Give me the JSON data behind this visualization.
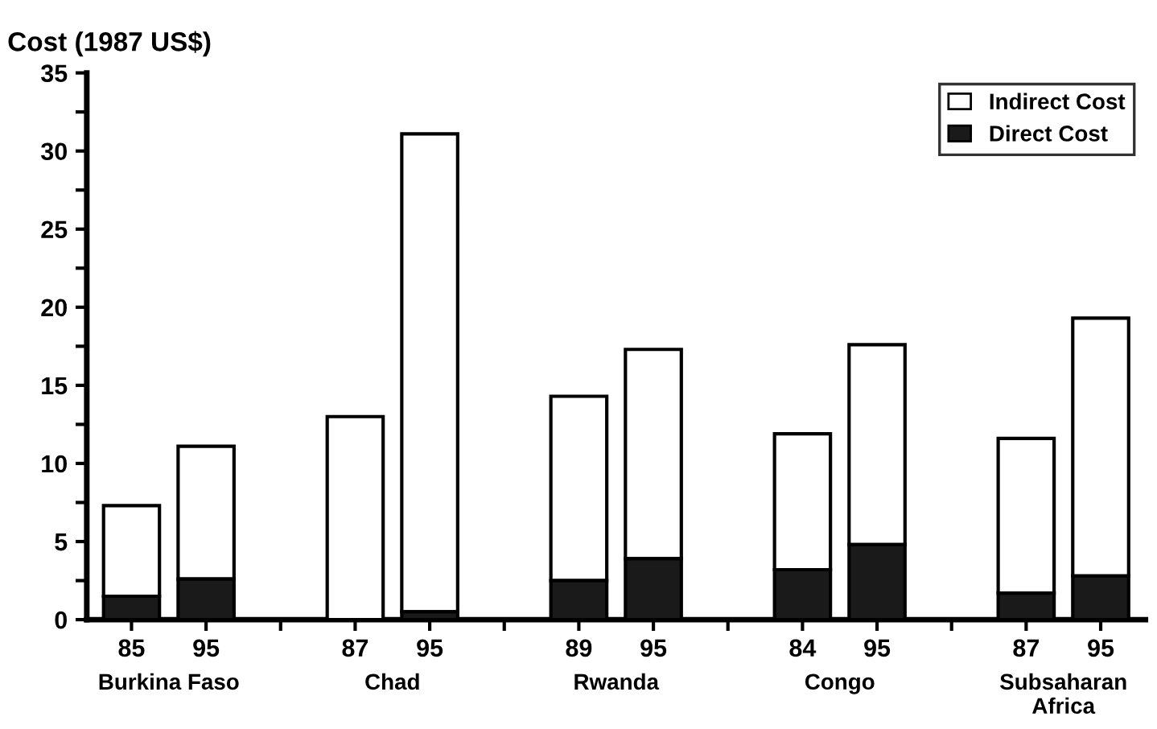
{
  "chart_data": {
    "type": "bar",
    "stacked": true,
    "ylabel": "Cost (1987 US$)",
    "categories": [
      "85",
      "95",
      null,
      "87",
      "95",
      null,
      "89",
      "95",
      null,
      "84",
      "95",
      null,
      "87",
      "95"
    ],
    "series": [
      {
        "name": "Direct Cost",
        "color": "#1a1a1a",
        "values": [
          1.5,
          2.6,
          null,
          0,
          0.5,
          null,
          2.5,
          3.9,
          null,
          3.2,
          4.8,
          null,
          1.7,
          2.8
        ]
      },
      {
        "name": "Indirect Cost",
        "color": "#ffffff",
        "values": [
          5.8,
          8.5,
          null,
          13.0,
          30.6,
          null,
          11.8,
          13.4,
          null,
          8.7,
          12.8,
          null,
          9.9,
          16.5
        ]
      }
    ],
    "annotations": [
      "Burkina Faso",
      "Chad",
      "Rwanda",
      "Congo",
      "Subsaharan\nAfrica"
    ],
    "ylim": [
      0,
      35
    ],
    "yticks": [
      0,
      {
        "value": 2.5,
        "label": null
      },
      5,
      {
        "value": 7.5,
        "label": null
      },
      10,
      {
        "value": 12.5,
        "label": null
      },
      15,
      {
        "value": 17.5,
        "label": null
      },
      20,
      {
        "value": 22.5,
        "label": null
      },
      25,
      {
        "value": 27.5,
        "label": null
      },
      30,
      {
        "value": 32.5,
        "label": null
      },
      35
    ],
    "grid": false,
    "legend": "top right"
  }
}
